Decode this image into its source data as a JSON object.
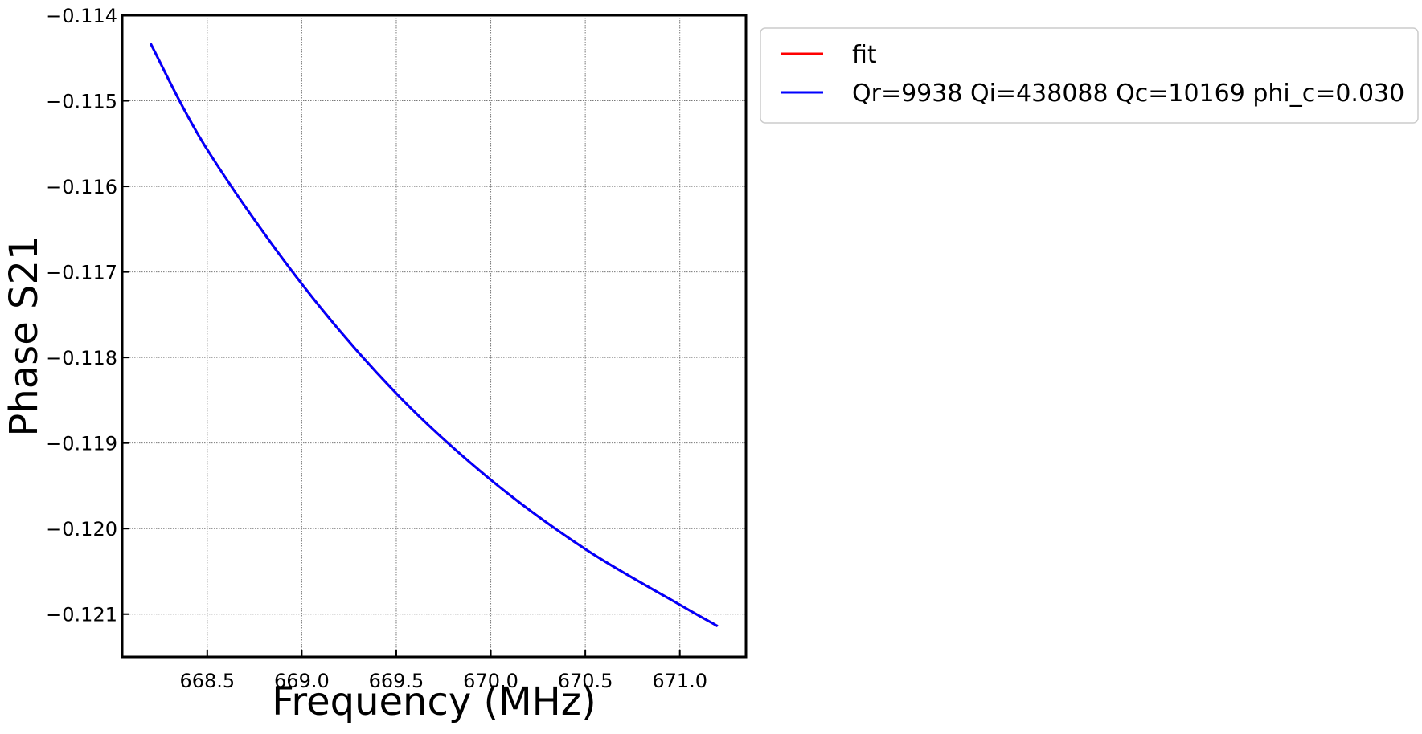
{
  "chart_data": {
    "type": "line",
    "xlabel": "Frequency (MHz)",
    "ylabel": "Phase S21",
    "xlim": [
      668.05,
      671.35
    ],
    "ylim": [
      -0.1215,
      -0.114
    ],
    "xticks": [
      668.5,
      669.0,
      669.5,
      670.0,
      670.5,
      671.0
    ],
    "xtick_labels": [
      "668.5",
      "669.0",
      "669.5",
      "670.0",
      "670.5",
      "671.0"
    ],
    "yticks": [
      -0.114,
      -0.115,
      -0.116,
      -0.117,
      -0.118,
      -0.119,
      -0.12,
      -0.121
    ],
    "ytick_labels": [
      "−0.114",
      "−0.115",
      "−0.116",
      "−0.117",
      "−0.118",
      "−0.119",
      "−0.120",
      "−0.121"
    ],
    "grid": true,
    "legend_position": "outside-right-top",
    "series": [
      {
        "name": "fit",
        "color": "#ff0000",
        "x": [
          668.2,
          668.5,
          669.0,
          669.5,
          670.0,
          670.5,
          671.0,
          671.2
        ],
        "y": [
          -0.11433,
          -0.11557,
          -0.11714,
          -0.11842,
          -0.11943,
          -0.12024,
          -0.12089,
          -0.12114
        ]
      },
      {
        "name": "Qr=9938 Qi=438088 Qc=10169 phi_c=0.030",
        "color": "#0000ff",
        "x": [
          668.2,
          668.5,
          669.0,
          669.5,
          670.0,
          670.5,
          671.0,
          671.2
        ],
        "y": [
          -0.11433,
          -0.11557,
          -0.11714,
          -0.11842,
          -0.11943,
          -0.12024,
          -0.12089,
          -0.12114
        ]
      }
    ]
  }
}
